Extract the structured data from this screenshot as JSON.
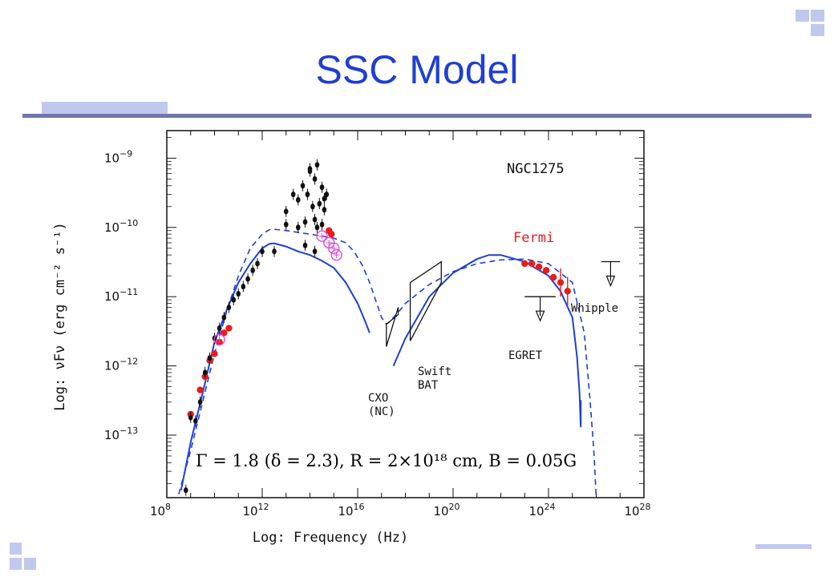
{
  "slide": {
    "title": "SSC Model",
    "colors": {
      "title": "#1f3fd0",
      "decor_light": "#c0c8ee",
      "decor_line": "#6f78a8"
    }
  },
  "chart_data": {
    "type": "scatter",
    "title": "NGC1275",
    "xlabel": "Log: Frequency (Hz)",
    "ylabel": "Log: νFν (erg cm⁻² s⁻¹)",
    "xscale": "log",
    "yscale": "log",
    "xlim": [
      100000000.0,
      1e+28
    ],
    "ylim": [
      1.25e-14,
      2.5e-09
    ],
    "x_ticks": [
      {
        "base": "10",
        "exp": "8"
      },
      {
        "base": "10",
        "exp": "12"
      },
      {
        "base": "10",
        "exp": "16"
      },
      {
        "base": "10",
        "exp": "20"
      },
      {
        "base": "10",
        "exp": "24"
      },
      {
        "base": "10",
        "exp": "28"
      }
    ],
    "y_ticks": [
      {
        "base": "10",
        "exp": "−9"
      },
      {
        "base": "10",
        "exp": "−10"
      },
      {
        "base": "10",
        "exp": "−11"
      },
      {
        "base": "10",
        "exp": "−12"
      },
      {
        "base": "10",
        "exp": "−13"
      }
    ],
    "formula": "Γ = 1.8 (δ = 2.3), R = 2×10¹⁸ cm, B = 0.05G",
    "annotations": {
      "fermi": "Fermi",
      "whipple": "Whipple",
      "egret": "EGRET",
      "swift_1": "Swift",
      "swift_2": "BAT",
      "cxo_1": "CXO",
      "cxo_2": "(NC)"
    },
    "series": [
      {
        "style": "solid",
        "color": "#1d3fd8",
        "x": [
          398000000.0,
          1000000000.0,
          3160000000.0,
          10000000000.0,
          31600000000.0,
          100000000000.0,
          316000000000.0,
          1000000000000.0,
          2000000000000.0,
          3160000000000.0,
          10000000000000.0,
          31600000000000.0,
          100000000000000.0,
          316000000000000.0,
          1000000000000000.0,
          3160000000000000.0,
          1e+16,
          2e+16,
          3.16e+16
        ],
        "y": [
          1.6e-14,
          7.9e-14,
          4e-13,
          2.2e-12,
          6.3e-12,
          1.6e-11,
          3e-11,
          5e-11,
          5.8e-11,
          5.9e-11,
          5.3e-11,
          4.5e-11,
          4e-11,
          3.3e-11,
          2.6e-11,
          1.6e-11,
          8e-12,
          4.5e-12,
          3e-12
        ],
        "x2": [
          3.16e+17,
          1e+18,
          3.16e+18,
          1e+19,
          1e+20,
          1e+21,
          3.16e+21,
          1e+22,
          1e+23,
          1e+24,
          3.16e+24,
          1e+25,
          1.58e+25,
          2e+25,
          2.24e+25,
          2.24e+25
        ],
        "y2": [
          1e-12,
          2.5e-12,
          5e-12,
          1e-11,
          2.2e-11,
          3.5e-11,
          4e-11,
          4e-11,
          3.2e-11,
          2e-11,
          1.2e-11,
          5e-12,
          1.3e-12,
          4e-13,
          1.3e-13,
          3.2e-13
        ]
      },
      {
        "style": "dashed",
        "color": "#1d3fd8",
        "x": [
          316000000.0,
          1000000000.0,
          3160000000.0,
          10000000000.0,
          31600000000.0,
          100000000000.0,
          316000000000.0,
          1000000000000.0,
          2000000000000.0,
          3160000000000.0,
          10000000000000.0,
          100000000000000.0,
          1000000000000000.0,
          3160000000000000.0,
          7000000000000000.0,
          1.6e+16,
          3.16e+16,
          6.3e+16,
          1e+17,
          1.58e+17,
          2.5e+17,
          3.16e+17,
          6.3e+17,
          1e+18,
          1e+19,
          1e+20,
          1e+21,
          1e+22,
          1e+23,
          1e+24,
          1e+25,
          3.16e+25,
          5.6e+25,
          7.9e+25,
          1e+26
        ],
        "y": [
          1.4e-14,
          6e-14,
          3e-13,
          1.5e-12,
          6e-12,
          2e-11,
          5e-11,
          8e-11,
          9.3e-11,
          9.4e-11,
          9e-11,
          8e-11,
          7e-11,
          6e-11,
          4.5e-11,
          2.8e-11,
          1.6e-11,
          8e-12,
          5e-12,
          4e-12,
          4.5e-12,
          5e-12,
          6.5e-12,
          8e-12,
          1.5e-11,
          2.3e-11,
          3e-11,
          3.4e-11,
          3.5e-11,
          3e-11,
          1.6e-11,
          3e-12,
          3e-13,
          6e-14,
          1.25e-14
        ]
      },
      {
        "name": "Fermi",
        "color": "#e81c1c",
        "marker": "filled-circle",
        "x": [
          1e+23,
          2e+23,
          4e+23,
          8e+23,
          1.6e+24,
          3.2e+24,
          6.3e+24
        ],
        "y": [
          3e-11,
          3e-11,
          2.7e-11,
          2.4e-11,
          1.9e-11,
          1.6e-11,
          1.2e-11
        ]
      },
      {
        "color": "#e81c1c",
        "marker": "filled-circle",
        "x": [
          1000000000.0,
          2500000000.0,
          4000000000.0,
          6300000000.0,
          10000000000.0,
          16000000000.0,
          25000000000.0,
          40000000000.0,
          630000000000000.0,
          790000000000000.0
        ],
        "y": [
          2e-13,
          4.5e-13,
          7e-13,
          1.2e-12,
          1.5e-12,
          2.2e-12,
          3e-12,
          3.5e-12,
          9e-11,
          8e-11
        ]
      },
      {
        "color": "#111111",
        "marker": "filled-diamond",
        "x": [
          630000000.0,
          1000000000.0,
          1600000000.0,
          2500000000.0,
          4000000000.0,
          6300000000.0,
          10000000000.0,
          16000000000.0,
          25000000000.0,
          40000000000.0,
          63000000000.0,
          100000000000.0,
          160000000000.0,
          250000000000.0,
          400000000000.0,
          630000000000.0,
          1000000000000.0,
          10000000000000.0,
          20000000000000.0,
          32000000000000.0,
          50000000000000.0,
          79000000000000.0,
          100000000000000.0,
          130000000000000.0,
          160000000000000.0,
          200000000000000.0,
          250000000000000.0,
          320000000000000.0,
          400000000000000.0,
          500000000000000.0,
          32000000000000.0,
          63000000000000.0,
          160000000000000.0,
          320000000000000.0,
          100000000000000.0,
          200000000000000.0,
          400000000000000.0,
          3200000000000.0,
          10000000000000.0,
          63000000000000.0,
          160000000000000.0
        ],
        "y": [
          1.6e-14,
          1.8e-13,
          1.6e-13,
          3e-13,
          8e-13,
          1.3e-12,
          2.5e-12,
          3.5e-12,
          5e-12,
          7e-12,
          9e-12,
          1.1e-11,
          1.4e-11,
          1.8e-11,
          2.4e-11,
          3e-11,
          4.5e-11,
          1.7e-10,
          3e-10,
          2.5e-10,
          4e-10,
          3e-10,
          6.5e-10,
          2e-10,
          5e-10,
          8e-10,
          2.2e-10,
          3.8e-10,
          1.8e-10,
          3e-10,
          1e-10,
          1.2e-10,
          1.3e-10,
          1.1e-10,
          7e-10,
          1e-10,
          2.6e-10,
          4.5e-11,
          1.1e-10,
          5.5e-11,
          4.5e-11
        ]
      },
      {
        "color": "#d84ad8",
        "marker": "open-circle",
        "x": [
          16000000000.0,
          320000000000000.0,
          630000000000000.0,
          1000000000000000.0,
          1300000000000000.0
        ],
        "y": [
          2.4e-12,
          7.5e-11,
          6e-11,
          5e-11,
          4e-11
        ]
      }
    ],
    "bowties": [
      {
        "x": [
          1.6e+17,
          5e+17
        ],
        "y_lo": [
          1.9e-12,
          7e-12
        ],
        "y_hi": [
          4e-12,
          5.5e-12
        ],
        "color": "#111111"
      },
      {
        "x": [
          1.6e+18,
          3.2e+19
        ],
        "y_lo": [
          2.3e-12,
          1.6e-11
        ],
        "y_hi": [
          1.6e-11,
          3.2e-11
        ],
        "color": "#111111"
      }
    ],
    "upper_limits": [
      {
        "x": [
          1e+23,
          2e+24
        ],
        "y": 1e-11,
        "color": "#111111"
      },
      {
        "x": [
          1.6e+26,
          1e+27
        ],
        "y": 3.2e-11,
        "color": "#111111"
      }
    ]
  }
}
